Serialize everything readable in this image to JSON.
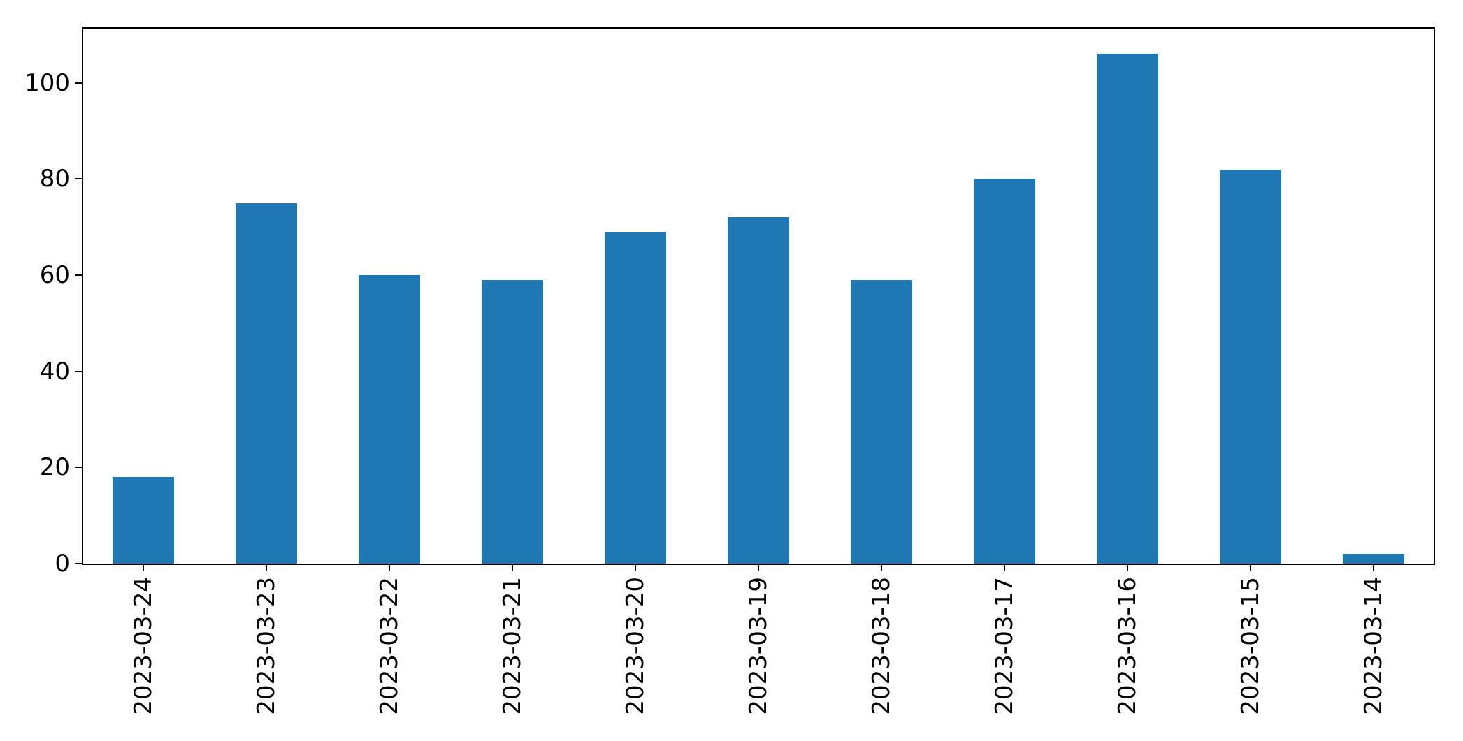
{
  "figure": {
    "background": "#ffffff"
  },
  "chart_data": {
    "type": "bar",
    "title": "",
    "xlabel": "",
    "ylabel": "",
    "categories": [
      "2023-03-24",
      "2023-03-23",
      "2023-03-22",
      "2023-03-21",
      "2023-03-20",
      "2023-03-19",
      "2023-03-18",
      "2023-03-17",
      "2023-03-16",
      "2023-03-15",
      "2023-03-14"
    ],
    "values": [
      18,
      75,
      60,
      59,
      69,
      72,
      59,
      80,
      106,
      82,
      2
    ],
    "ylim": [
      0,
      111.3
    ],
    "yticks": [
      0,
      20,
      40,
      60,
      80,
      100
    ],
    "x_tick_rotation": 90,
    "grid": false,
    "legend": "none",
    "bar_width_fraction": 0.5,
    "bar_color": "#1f77b4",
    "axis_color": "#000000",
    "tick_label_color": "#000000"
  }
}
